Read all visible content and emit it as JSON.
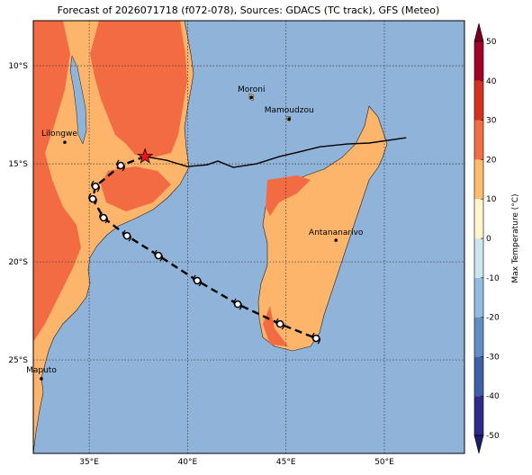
{
  "title": "Forecast of 2026071718 (f072-078), Sources: GDACS (TC track), GFS (Meteo)",
  "map": {
    "xlim": [
      32.16,
      54.07
    ],
    "ylim": [
      -29.77,
      -7.7
    ],
    "xticks": [
      {
        "value": 35,
        "label": "35°E"
      },
      {
        "value": 40,
        "label": "40°E"
      },
      {
        "value": 45,
        "label": "45°E"
      },
      {
        "value": 50,
        "label": "50°E"
      }
    ],
    "yticks": [
      {
        "value": -10,
        "label": "10°S"
      },
      {
        "value": -15,
        "label": "15°S"
      },
      {
        "value": -20,
        "label": "20°S"
      },
      {
        "value": -25,
        "label": "25°S"
      }
    ],
    "cities": [
      {
        "name": "Moroni",
        "lon": 43.24,
        "lat": -11.61
      },
      {
        "name": "Mamoudzou",
        "lon": 45.16,
        "lat": -12.71
      },
      {
        "name": "Lilongwe",
        "lon": 33.76,
        "lat": -13.9
      },
      {
        "name": "Antananarivo",
        "lon": 47.54,
        "lat": -18.9
      },
      {
        "name": "Maputo",
        "lon": 32.57,
        "lat": -25.96
      }
    ],
    "track_observed": {
      "lon": [
        51.11,
        49.23,
        48.09,
        46.72,
        45.8,
        44.66,
        43.51,
        42.32,
        41.54,
        41.0,
        39.99,
        38.94,
        37.84
      ],
      "lat": [
        -13.67,
        -13.94,
        -13.99,
        -14.13,
        -14.36,
        -14.63,
        -15.0,
        -15.18,
        -14.86,
        -15.05,
        -15.14,
        -14.82,
        -14.63
      ]
    },
    "current_position": {
      "lon": 37.84,
      "lat": -14.63
    },
    "track_forecast": {
      "lon": [
        37.84,
        36.6,
        35.32,
        35.18,
        35.73,
        36.92,
        38.52,
        40.49,
        42.55,
        44.7,
        46.53
      ],
      "lat": [
        -14.63,
        -15.09,
        -16.15,
        -16.79,
        -17.75,
        -18.67,
        -19.68,
        -20.96,
        -22.16,
        -23.17,
        -23.9
      ]
    }
  },
  "colorbar": {
    "label": "Max Temperature (°C)",
    "ticks": [
      -50,
      -40,
      -30,
      -20,
      -10,
      0,
      10,
      20,
      30,
      40,
      50
    ],
    "colors": [
      "#2b2c8a",
      "#3f5fa8",
      "#5f8fc4",
      "#92bde0",
      "#cde6f0",
      "#fff6cc",
      "#fdbd6c",
      "#f46d43",
      "#d7301f",
      "#a50026"
    ]
  }
}
